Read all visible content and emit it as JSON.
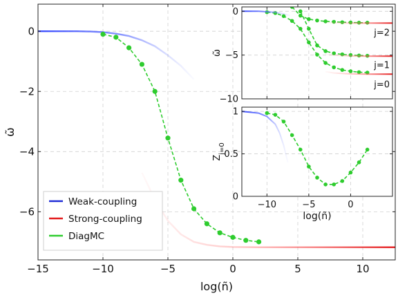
{
  "chart_data": [
    {
      "id": "main",
      "type": "line",
      "xlabel": "log(ñ)",
      "ylabel": "ω̃",
      "xlim": [
        -15,
        12.5
      ],
      "ylim": [
        -7.6,
        0.9
      ],
      "xticks": [
        -15,
        -10,
        -5,
        0,
        5,
        10
      ],
      "yticks": [
        0,
        -2,
        -4,
        -6
      ],
      "grid": true,
      "legend_position": "bottom-left",
      "legend": [
        {
          "label": "Weak-coupling",
          "color": "#1f2bd6"
        },
        {
          "label": "Strong-coupling",
          "color": "#e31a1c"
        },
        {
          "label": "DiagMC",
          "color": "#2ecc2e"
        }
      ],
      "series": [
        {
          "name": "Weak-coupling",
          "color": "#1f2bd6",
          "style": "solid-fading",
          "x": [
            -15,
            -14,
            -13,
            -12,
            -11,
            -10,
            -9,
            -8,
            -7,
            -6,
            -5,
            -4,
            -3
          ],
          "y": [
            0,
            0,
            0,
            0,
            -0.01,
            -0.03,
            -0.08,
            -0.16,
            -0.3,
            -0.5,
            -0.8,
            -1.15,
            -1.6
          ]
        },
        {
          "name": "Strong-coupling",
          "color": "#e31a1c",
          "style": "solid-fading",
          "x": [
            -7,
            -6,
            -5,
            -4,
            -3,
            -2,
            -1,
            0,
            2,
            4,
            6,
            8,
            10,
            12.5
          ],
          "y": [
            -4.7,
            -5.6,
            -6.3,
            -6.75,
            -7.0,
            -7.1,
            -7.15,
            -7.17,
            -7.18,
            -7.18,
            -7.18,
            -7.18,
            -7.18,
            -7.18
          ]
        },
        {
          "name": "DiagMC",
          "color": "#2ecc2e",
          "style": "dashed-markers",
          "x": [
            -10,
            -9,
            -8,
            -7,
            -6,
            -5,
            -4,
            -3,
            -2,
            -1,
            0,
            1,
            2
          ],
          "y": [
            -0.1,
            -0.2,
            -0.55,
            -1.1,
            -2.0,
            -3.55,
            -4.95,
            -5.9,
            -6.4,
            -6.7,
            -6.85,
            -6.95,
            -7.0
          ]
        }
      ]
    },
    {
      "id": "inset-omega",
      "type": "line",
      "xlabel": "",
      "ylabel": "ω̃",
      "xlim": [
        -13,
        5
      ],
      "ylim": [
        -10,
        0.5
      ],
      "xticks": [
        -10,
        -5,
        0
      ],
      "yticks": [
        0,
        -5,
        -10
      ],
      "grid": true,
      "curve_labels": [
        "j=2",
        "j=1",
        "j=0"
      ],
      "series": [
        {
          "name": "j=0",
          "color": "#2ecc2e",
          "style": "dashed-markers",
          "x": [
            -10,
            -9,
            -8,
            -7,
            -6,
            -5,
            -4,
            -3,
            -2,
            -1,
            0,
            1,
            2
          ],
          "y": [
            -0.1,
            -0.2,
            -0.55,
            -1.1,
            -2.0,
            -3.55,
            -4.95,
            -5.9,
            -6.4,
            -6.7,
            -6.85,
            -6.95,
            -7.0
          ]
        },
        {
          "name": "j=1",
          "color": "#2ecc2e",
          "style": "dashed-markers",
          "x": [
            -6,
            -5,
            -4,
            -3,
            -2,
            -1,
            0,
            1,
            2
          ],
          "y": [
            0,
            -2.0,
            -3.9,
            -4.55,
            -4.8,
            -4.92,
            -5.0,
            -5.05,
            -5.08
          ]
        },
        {
          "name": "j=2",
          "color": "#2ecc2e",
          "style": "dashed-markers",
          "x": [
            -7,
            -6,
            -5,
            -4,
            -3,
            -2,
            -1,
            0,
            1,
            2
          ],
          "y": [
            0.5,
            -0.5,
            -0.9,
            -1.05,
            -1.15,
            -1.2,
            -1.25,
            -1.28,
            -1.3,
            -1.3
          ]
        },
        {
          "name": "Weak-coupling",
          "color": "#1f2bd6",
          "style": "solid-fading",
          "x": [
            -13,
            -11,
            -10,
            -9,
            -8,
            -7.2
          ],
          "y": [
            0,
            0,
            -0.05,
            -0.12,
            -0.3,
            -0.5
          ]
        },
        {
          "name": "Strong-coupling j=0",
          "color": "#e31a1c",
          "style": "solid-fading",
          "x": [
            -3,
            -2,
            -1,
            0,
            2,
            4,
            5
          ],
          "y": [
            -6.9,
            -7.05,
            -7.1,
            -7.15,
            -7.18,
            -7.18,
            -7.18
          ]
        },
        {
          "name": "Strong-coupling j=1",
          "color": "#e31a1c",
          "style": "solid-fading",
          "x": [
            -3,
            -2,
            -1,
            0,
            2,
            4,
            5
          ],
          "y": [
            -4.9,
            -5.0,
            -5.05,
            -5.1,
            -5.12,
            -5.12,
            -5.12
          ]
        },
        {
          "name": "Strong-coupling j=2",
          "color": "#e31a1c",
          "style": "solid-fading",
          "x": [
            -3,
            -2,
            -1,
            0,
            2,
            4,
            5
          ],
          "y": [
            -1.25,
            -1.3,
            -1.32,
            -1.35,
            -1.35,
            -1.35,
            -1.35
          ]
        }
      ]
    },
    {
      "id": "inset-Z",
      "type": "line",
      "xlabel": "log(ñ)",
      "ylabel": "Z_{j=0}",
      "xlim": [
        -13,
        5
      ],
      "ylim": [
        0,
        1.05
      ],
      "xticks": [
        -10,
        -5,
        0
      ],
      "yticks": [
        0,
        0.5,
        1
      ],
      "ytick_labels": [
        "0",
        "0.5",
        "1"
      ],
      "grid": true,
      "series": [
        {
          "name": "DiagMC",
          "color": "#2ecc2e",
          "style": "dashed-markers",
          "x": [
            -10,
            -9,
            -8,
            -7,
            -6,
            -5,
            -4,
            -3,
            -2,
            -1,
            0,
            1,
            2
          ],
          "y": [
            0.98,
            0.96,
            0.88,
            0.72,
            0.55,
            0.35,
            0.22,
            0.14,
            0.14,
            0.18,
            0.28,
            0.4,
            0.55
          ]
        },
        {
          "name": "Weak-coupling",
          "color": "#1f2bd6",
          "style": "solid-fading",
          "x": [
            -13,
            -11,
            -10,
            -9,
            -8.5,
            -8,
            -7.5
          ],
          "y": [
            1.0,
            0.98,
            0.94,
            0.85,
            0.75,
            0.6,
            0.4
          ]
        },
        {
          "name": "Strong-coupling",
          "color": "#e31a1c",
          "style": "solid-fading",
          "x": [
            2,
            3,
            4,
            5
          ],
          "y": [
            0.99,
            0.99,
            0.99,
            0.99
          ]
        }
      ]
    }
  ]
}
